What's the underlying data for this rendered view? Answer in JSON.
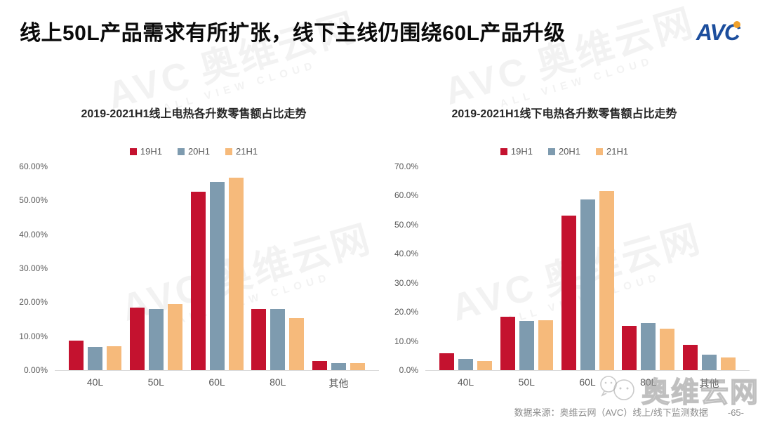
{
  "page": {
    "title": "线上50L产品需求有所扩张，线下主线仍围绕60L产品升级",
    "logo": "AVC",
    "footer_source": "数据来源：奥维云网（AVC）线上/线下监测数据",
    "page_number": "-65-",
    "watermark": {
      "avc": "AVC",
      "cn": "奥维云网",
      "sub": "ALL VIEW CLOUD"
    }
  },
  "colors": {
    "series_19H1": "#C4122F",
    "series_20H1": "#7E9BAF",
    "series_21H1": "#F6BA7B",
    "logo_blue": "#1C4E9D",
    "logo_orange": "#F0A12B",
    "axis_text": "#595959",
    "baseline": "#D9D9D9",
    "footer_text": "#8C8C8C"
  },
  "chart_data": [
    {
      "type": "bar",
      "title": "2019-2021H1线上电热各升数零售额占比走势",
      "categories": [
        "40L",
        "50L",
        "60L",
        "80L",
        "其他"
      ],
      "series": [
        {
          "name": "19H1",
          "color": "#C4122F",
          "values": [
            8.7,
            18.4,
            52.5,
            17.9,
            2.7
          ]
        },
        {
          "name": "20H1",
          "color": "#7E9BAF",
          "values": [
            6.9,
            17.9,
            55.5,
            18.0,
            2.0
          ]
        },
        {
          "name": "21H1",
          "color": "#F6BA7B",
          "values": [
            7.0,
            19.4,
            56.6,
            15.4,
            2.1
          ]
        }
      ],
      "ylabel": "",
      "xlabel": "",
      "ylim": [
        0,
        60
      ],
      "yticks": [
        "0.00%",
        "10.00%",
        "20.00%",
        "30.00%",
        "40.00%",
        "50.00%",
        "60.00%"
      ],
      "grid": false,
      "legend_position": "top"
    },
    {
      "type": "bar",
      "title": "2019-2021H1线下电热各升数零售额占比走势",
      "categories": [
        "40L",
        "50L",
        "60L",
        "80L",
        "其他"
      ],
      "series": [
        {
          "name": "19H1",
          "color": "#C4122F",
          "values": [
            5.8,
            18.4,
            53.2,
            15.3,
            8.6
          ]
        },
        {
          "name": "20H1",
          "color": "#7E9BAF",
          "values": [
            3.9,
            16.9,
            58.7,
            16.1,
            5.2
          ]
        },
        {
          "name": "21H1",
          "color": "#F6BA7B",
          "values": [
            3.2,
            17.1,
            61.5,
            14.2,
            4.4
          ]
        }
      ],
      "ylabel": "",
      "xlabel": "",
      "ylim": [
        0,
        70
      ],
      "yticks": [
        "0.0%",
        "10.0%",
        "20.0%",
        "30.0%",
        "40.0%",
        "50.0%",
        "60.0%",
        "70.0%"
      ],
      "grid": false,
      "legend_position": "top"
    }
  ]
}
